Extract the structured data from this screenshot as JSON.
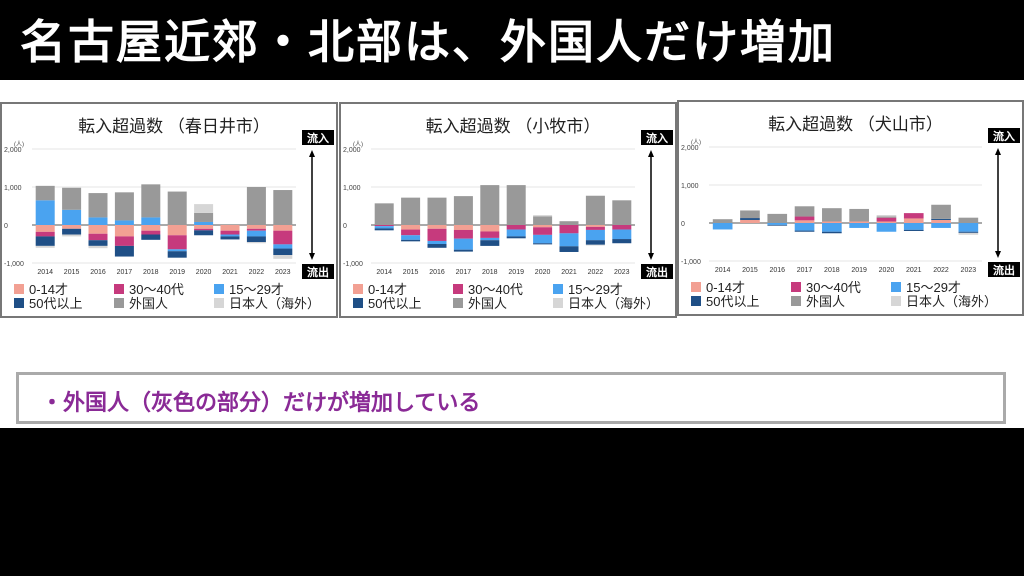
{
  "slide_title": "名古屋近郊・北部は、外国人だけ増加",
  "note": "・外国人（灰色の部分）だけが増加している",
  "labels": {
    "inflow": "流入",
    "outflow": "流出",
    "unit": "(人)"
  },
  "colors": {
    "age0_14": "#f2a093",
    "age30_40": "#c63a7d",
    "age15_29": "#4aa3f0",
    "age50plus": "#1f4f86",
    "foreign": "#999999",
    "japanese_abroad": "#d6d6d6"
  },
  "chart_data": [
    {
      "type": "bar",
      "stacked": true,
      "title": "転入超過数 （春日井市）",
      "ylabel": "(人)",
      "ylim": [
        -1000,
        2000
      ],
      "yticks": [
        "2,000",
        "1,000",
        "0",
        "-1,000"
      ],
      "categories": [
        "2014",
        "2015",
        "2016",
        "2017",
        "2018",
        "2019",
        "2020",
        "2021",
        "2022",
        "2023"
      ],
      "series": [
        {
          "name": "0-14才",
          "key": "age0_14",
          "values": [
            -180,
            -100,
            -230,
            -300,
            -150,
            -270,
            -100,
            -150,
            -100,
            -150
          ]
        },
        {
          "name": "30〜40代",
          "key": "age30_40",
          "values": [
            -120,
            0,
            -170,
            -250,
            -100,
            -370,
            -40,
            -100,
            -50,
            -360
          ]
        },
        {
          "name": "15〜29才",
          "key": "age15_29",
          "values": [
            650,
            400,
            200,
            120,
            200,
            -50,
            80,
            -50,
            -150,
            -110
          ]
        },
        {
          "name": "50代以上",
          "key": "age50plus",
          "values": [
            -250,
            -150,
            -150,
            -280,
            -140,
            -170,
            -130,
            -80,
            -150,
            -170
          ]
        },
        {
          "name": "外国人",
          "key": "foreign",
          "values": [
            380,
            580,
            640,
            740,
            870,
            880,
            240,
            0,
            1000,
            920
          ]
        },
        {
          "name": "日本人（海外）",
          "key": "japanese_abroad",
          "values": [
            -50,
            -50,
            -60,
            0,
            0,
            0,
            230,
            0,
            -30,
            -100
          ]
        }
      ]
    },
    {
      "type": "bar",
      "stacked": true,
      "title": "転入超過数 （小牧市）",
      "ylabel": "(人)",
      "ylim": [
        -1000,
        2000
      ],
      "yticks": [
        "2,000",
        "1,000",
        "0",
        "-1,000"
      ],
      "categories": [
        "2014",
        "2015",
        "2016",
        "2017",
        "2018",
        "2019",
        "2020",
        "2021",
        "2022",
        "2023"
      ],
      "series": [
        {
          "name": "0-14才",
          "key": "age0_14",
          "values": [
            0,
            -120,
            -100,
            -130,
            -170,
            0,
            -60,
            0,
            -50,
            0
          ]
        },
        {
          "name": "30〜40代",
          "key": "age30_40",
          "values": [
            -30,
            -150,
            -320,
            -230,
            -170,
            -120,
            -200,
            -220,
            -80,
            -120
          ]
        },
        {
          "name": "15〜29才",
          "key": "age15_29",
          "values": [
            -60,
            -120,
            -80,
            -290,
            -60,
            -180,
            -220,
            -340,
            -270,
            -250
          ]
        },
        {
          "name": "50代以上",
          "key": "age50plus",
          "values": [
            -50,
            -40,
            -100,
            -50,
            -150,
            -50,
            -30,
            -150,
            -120,
            -110
          ]
        },
        {
          "name": "外国人",
          "key": "foreign",
          "values": [
            570,
            720,
            720,
            760,
            1050,
            1050,
            230,
            100,
            770,
            650
          ]
        },
        {
          "name": "日本人（海外）",
          "key": "japanese_abroad",
          "values": [
            0,
            0,
            0,
            0,
            0,
            0,
            30,
            0,
            -20,
            0
          ]
        }
      ]
    },
    {
      "type": "bar",
      "stacked": true,
      "title": "転入超過数 （犬山市）",
      "ylabel": "(人)",
      "ylim": [
        -1000,
        2000
      ],
      "yticks": [
        "2,000",
        "1,000",
        "0",
        "-1,000"
      ],
      "categories": [
        "2014",
        "2015",
        "2016",
        "2017",
        "2018",
        "2019",
        "2020",
        "2021",
        "2022",
        "2023"
      ],
      "series": [
        {
          "name": "0-14才",
          "key": "age0_14",
          "values": [
            0,
            80,
            0,
            70,
            40,
            40,
            40,
            120,
            80,
            0
          ]
        },
        {
          "name": "30〜40代",
          "key": "age30_40",
          "values": [
            0,
            0,
            0,
            100,
            0,
            0,
            100,
            140,
            0,
            0
          ]
        },
        {
          "name": "15〜29才",
          "key": "age15_29",
          "values": [
            -170,
            0,
            -50,
            -200,
            -230,
            -130,
            -230,
            -180,
            -130,
            -230
          ]
        },
        {
          "name": "50代以上",
          "key": "age50plus",
          "values": [
            0,
            50,
            -20,
            -30,
            -40,
            0,
            0,
            -30,
            30,
            -30
          ]
        },
        {
          "name": "外国人",
          "key": "foreign",
          "values": [
            100,
            200,
            240,
            270,
            350,
            330,
            30,
            0,
            370,
            140
          ]
        },
        {
          "name": "日本人（海外）",
          "key": "japanese_abroad",
          "values": [
            0,
            0,
            0,
            0,
            0,
            0,
            40,
            0,
            0,
            -50
          ]
        }
      ]
    }
  ]
}
